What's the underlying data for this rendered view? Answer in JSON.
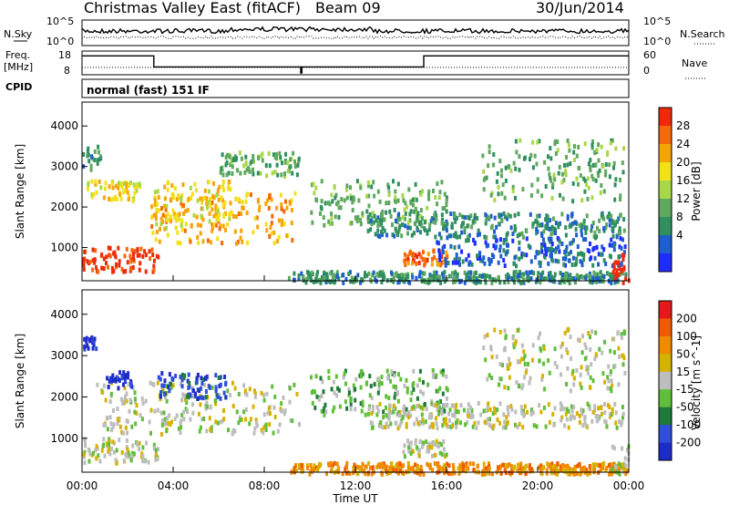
{
  "header": {
    "station": "Christmas Valley East (fitACF)",
    "beam": "Beam 09",
    "date": "30/Jun/2014"
  },
  "cpid_label": "CPID",
  "cpid_value": "normal (fast) 151 IF",
  "time_ticks": [
    "00:00",
    "04:00",
    "08:00",
    "12:00",
    "16:00",
    "20:00",
    "00:00"
  ],
  "xlabel": "Time UT",
  "colors": {
    "power_scale": [
      "#1f2cff",
      "#1e5fcf",
      "#2f8f5f",
      "#5fa85f",
      "#a8d84a",
      "#f2e01a",
      "#f7a40a",
      "#f46a0a",
      "#ee2a0a"
    ],
    "velocity_scale": [
      "#1c2cc8",
      "#2f4fd8",
      "#1e7a3a",
      "#5fbf3a",
      "#bdbdbd",
      "#d6b200",
      "#f08a00",
      "#f05a00",
      "#e41a1a"
    ]
  },
  "chart_data": [
    {
      "type": "line",
      "name": "noise",
      "left_label": "N.Sky",
      "right_label": "N.Search",
      "left_ticks": [
        "10^5",
        "10^0"
      ],
      "right_ticks": [
        "10^5",
        "10^0"
      ],
      "right_style": "dotted"
    },
    {
      "type": "line",
      "name": "frequency",
      "left_label": "Freq.",
      "left_unit": "[MHz]",
      "left_ticks": [
        "18",
        "8"
      ],
      "right_label": "Nave",
      "right_ticks": [
        "60",
        "0"
      ],
      "right_style": "dotted",
      "x_hours": [
        0,
        3.15,
        3.15,
        9.6,
        9.6,
        9.65,
        9.65,
        15.0,
        15.0,
        24
      ],
      "freq_mhz": [
        16.5,
        16.5,
        11.0,
        11.0,
        8.0,
        8.0,
        11.0,
        11.0,
        16.5,
        16.5
      ]
    },
    {
      "type": "heatmap",
      "name": "power",
      "ylabel": "Slant Range [km]",
      "y_ticks": [
        1000,
        2000,
        3000,
        4000
      ],
      "ylim": [
        180,
        4590
      ],
      "xlim": [
        0,
        24
      ],
      "colorbar_label": "Power [dB]",
      "colorbar_ticks": [
        "28",
        "24",
        "20",
        "16",
        "12",
        "8",
        "4"
      ],
      "features": [
        {
          "t0": 0.0,
          "t1": 3.3,
          "r0": 450,
          "r1": 1050,
          "level": 8
        },
        {
          "t0": 3.0,
          "t1": 9.3,
          "r0": 1150,
          "r1": 2400,
          "level": 6
        },
        {
          "t0": 3.1,
          "t1": 6.5,
          "r0": 1500,
          "r1": 2700,
          "level": 5
        },
        {
          "t0": 0.2,
          "t1": 2.5,
          "r0": 2200,
          "r1": 2700,
          "level": 5
        },
        {
          "t0": 0.0,
          "t1": 0.8,
          "r0": 2950,
          "r1": 3600,
          "level": 2
        },
        {
          "t0": 6.0,
          "t1": 9.5,
          "r0": 2800,
          "r1": 3400,
          "level": 3
        },
        {
          "t0": 10.0,
          "t1": 16.0,
          "r0": 1600,
          "r1": 2700,
          "level": 3
        },
        {
          "t0": 12.5,
          "t1": 23.8,
          "r0": 1300,
          "r1": 1900,
          "level": 2
        },
        {
          "t0": 14.0,
          "t1": 16.0,
          "r0": 600,
          "r1": 1000,
          "level": 7
        },
        {
          "t0": 15.5,
          "t1": 23.8,
          "r0": 600,
          "r1": 1300,
          "level": 1
        },
        {
          "t0": 17.5,
          "t1": 23.8,
          "r0": 2200,
          "r1": 3700,
          "level": 3
        },
        {
          "t0": 9.0,
          "t1": 24.0,
          "r0": 180,
          "r1": 450,
          "level": 2
        },
        {
          "t0": 23.2,
          "t1": 24.0,
          "r0": 180,
          "r1": 900,
          "level": 8
        }
      ]
    },
    {
      "type": "heatmap",
      "name": "velocity",
      "ylabel": "Slant Range [km]",
      "y_ticks": [
        1000,
        2000,
        3000,
        4000
      ],
      "ylim": [
        180,
        4590
      ],
      "xlim": [
        0,
        24
      ],
      "colorbar_label": "Velocity [m s^-1]",
      "colorbar_ticks": [
        "200",
        "100",
        "50",
        "15",
        "-15",
        "-50",
        "-100",
        "-200"
      ],
      "features": [
        {
          "t0": 0.0,
          "t1": 3.3,
          "r0": 450,
          "r1": 1050,
          "level": 4
        },
        {
          "t0": 0.6,
          "t1": 9.5,
          "r0": 1150,
          "r1": 2400,
          "level": 4
        },
        {
          "t0": 3.3,
          "t1": 6.3,
          "r0": 2000,
          "r1": 2650,
          "level": 1
        },
        {
          "t0": 1.0,
          "t1": 2.2,
          "r0": 2250,
          "r1": 2650,
          "level": 0
        },
        {
          "t0": 0.0,
          "t1": 0.6,
          "r0": 3200,
          "r1": 3500,
          "level": 0
        },
        {
          "t0": 10.0,
          "t1": 16.0,
          "r0": 1600,
          "r1": 2700,
          "level": 3
        },
        {
          "t0": 12.5,
          "t1": 23.8,
          "r0": 1300,
          "r1": 1900,
          "level": 4
        },
        {
          "t0": 17.5,
          "t1": 23.8,
          "r0": 2200,
          "r1": 3700,
          "level": 4
        },
        {
          "t0": 9.0,
          "t1": 24.0,
          "r0": 180,
          "r1": 450,
          "level": 6
        },
        {
          "t0": 14.0,
          "t1": 16.0,
          "r0": 600,
          "r1": 1000,
          "level": 4
        },
        {
          "t0": 23.2,
          "t1": 24.0,
          "r0": 180,
          "r1": 900,
          "level": 4
        }
      ]
    }
  ]
}
